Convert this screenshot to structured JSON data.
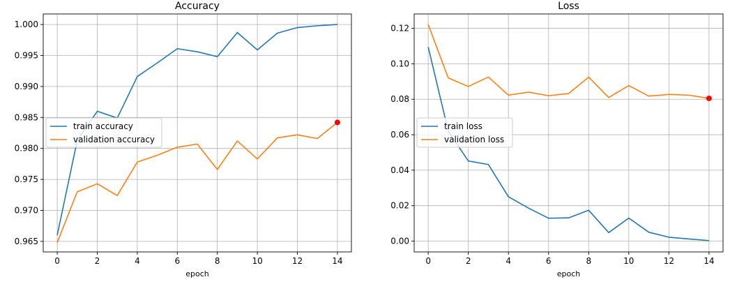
{
  "chart_data": [
    {
      "type": "line",
      "title": "Accuracy",
      "xlabel": "epoch",
      "ylabel": "",
      "xlim": [
        -0.7,
        14.7
      ],
      "ylim": [
        0.9633,
        1.0017
      ],
      "xticks": [
        0,
        2,
        4,
        6,
        8,
        10,
        12,
        14
      ],
      "xtick_labels": [
        "0",
        "2",
        "4",
        "6",
        "8",
        "10",
        "12",
        "14"
      ],
      "yticks": [
        0.965,
        0.97,
        0.975,
        0.98,
        0.985,
        0.99,
        0.995,
        1.0
      ],
      "ytick_labels": [
        "0.965",
        "0.970",
        "0.975",
        "0.980",
        "0.985",
        "0.990",
        "0.995",
        "1.000"
      ],
      "grid": true,
      "legend_position": "center-left",
      "x": [
        0,
        1,
        2,
        3,
        4,
        5,
        6,
        7,
        8,
        9,
        10,
        11,
        12,
        13,
        14
      ],
      "series": [
        {
          "name": "train accuracy",
          "color": "#1f77b4",
          "values": [
            0.966,
            0.9813,
            0.986,
            0.9849,
            0.9916,
            0.9938,
            0.9961,
            0.9956,
            0.9948,
            0.9987,
            0.9959,
            0.9986,
            0.9995,
            0.9998,
            1.0
          ]
        },
        {
          "name": "validation accuracy",
          "color": "#ff7f0e",
          "values": [
            0.9648,
            0.973,
            0.9743,
            0.9724,
            0.9778,
            0.9789,
            0.9802,
            0.9807,
            0.9766,
            0.9812,
            0.9783,
            0.9817,
            0.9822,
            0.9816,
            0.9842
          ]
        }
      ],
      "highlight_point": {
        "x": 14,
        "y": 0.9842,
        "color": "#ff0000"
      }
    },
    {
      "type": "line",
      "title": "Loss",
      "xlabel": "epoch",
      "ylabel": "",
      "xlim": [
        -0.7,
        14.7
      ],
      "ylim": [
        -0.0061,
        0.1281
      ],
      "xticks": [
        0,
        2,
        4,
        6,
        8,
        10,
        12,
        14
      ],
      "xtick_labels": [
        "0",
        "2",
        "4",
        "6",
        "8",
        "10",
        "12",
        "14"
      ],
      "yticks": [
        0.0,
        0.02,
        0.04,
        0.06,
        0.08,
        0.1,
        0.12
      ],
      "ytick_labels": [
        "0.00",
        "0.02",
        "0.04",
        "0.06",
        "0.08",
        "0.10",
        "0.12"
      ],
      "grid": true,
      "legend_position": "center-left",
      "x": [
        0,
        1,
        2,
        3,
        4,
        5,
        6,
        7,
        8,
        9,
        10,
        11,
        12,
        13,
        14
      ],
      "series": [
        {
          "name": "train loss",
          "color": "#1f77b4",
          "values": [
            0.1095,
            0.062,
            0.0452,
            0.0432,
            0.025,
            0.0186,
            0.0129,
            0.0131,
            0.0174,
            0.0048,
            0.013,
            0.005,
            0.0022,
            0.0012,
            0.0003
          ]
        },
        {
          "name": "validation loss",
          "color": "#ff7f0e",
          "values": [
            0.1222,
            0.092,
            0.0872,
            0.0925,
            0.0823,
            0.084,
            0.082,
            0.0832,
            0.0925,
            0.081,
            0.0877,
            0.0818,
            0.0827,
            0.0823,
            0.0805
          ]
        }
      ],
      "highlight_point": {
        "x": 14,
        "y": 0.0805,
        "color": "#ff0000"
      }
    }
  ]
}
